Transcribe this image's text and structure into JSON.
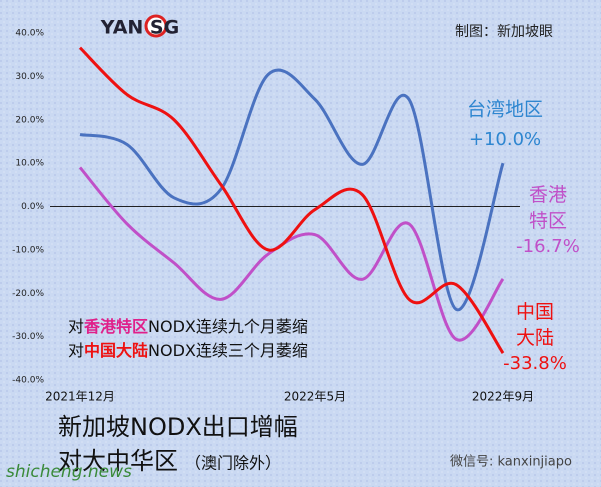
{
  "chart_data": {
    "type": "line",
    "logo": "YAN SG",
    "source": "制图：新加坡眼",
    "title": "新加坡NODX出口增幅",
    "subtitle_main": "对大中华区",
    "subtitle_note": "（澳门除外）",
    "watermark_left": "shicheng.news",
    "watermark_right": "微信号: kanxinjiapo",
    "annotations": [
      [
        {
          "text": "对",
          "color": "#111111"
        },
        {
          "text": "香港特区",
          "color": "#e0208a"
        },
        {
          "text": "NODX连续九个月萎缩",
          "color": "#111111"
        }
      ],
      [
        {
          "text": "对",
          "color": "#111111"
        },
        {
          "text": "中国大陆",
          "color": "#ee1111"
        },
        {
          "text": "NODX连续三个月萎缩",
          "color": "#111111"
        }
      ]
    ],
    "categories": [
      "2021年12月",
      null,
      null,
      null,
      null,
      "2022年5月",
      null,
      null,
      null,
      "2022年9月"
    ],
    "series": [
      {
        "name": "台湾地区",
        "color": "#4a72c0",
        "label_color": "#2e86d0",
        "values": [
          16.6,
          14.3,
          2,
          4,
          30.4,
          24.7,
          9.7,
          24.7,
          -23.7,
          10.0
        ],
        "value_labels": [
          null,
          null,
          null,
          null,
          null,
          null,
          null,
          null,
          null,
          "+10.0%"
        ]
      },
      {
        "name": "香港特区",
        "color": "#c050c8",
        "label_color": "#c050c8",
        "values": [
          9,
          -4,
          -13,
          -21.4,
          -11,
          -6.5,
          -16.8,
          -4,
          -30.6,
          -16.7
        ],
        "value_labels": [
          null,
          null,
          null,
          null,
          null,
          null,
          null,
          null,
          null,
          "-16.7%"
        ]
      },
      {
        "name": "中国大陆",
        "color": "#ee1111",
        "label_color": "#ee1111",
        "values": [
          36.6,
          25.8,
          20,
          5,
          -10,
          -0.7,
          2.8,
          -21.4,
          -18,
          -33.8
        ],
        "value_labels": [
          null,
          null,
          null,
          null,
          null,
          null,
          null,
          null,
          null,
          "-33.8%"
        ]
      }
    ],
    "ylim": [
      -40,
      40
    ],
    "yticks": [
      {
        "value": 40,
        "label": "40.0%"
      },
      {
        "value": 30,
        "label": "30.0%"
      },
      {
        "value": 20,
        "label": "20.0%"
      },
      {
        "value": 10,
        "label": "10.0%"
      },
      {
        "value": 0,
        "label": "0.0%"
      },
      {
        "value": -10,
        "label": "-10.0%"
      },
      {
        "value": -20,
        "label": "-20.0%"
      },
      {
        "value": -30,
        "label": "-30.0%"
      },
      {
        "value": -40,
        "label": "-40.0%"
      }
    ],
    "grid": false
  }
}
